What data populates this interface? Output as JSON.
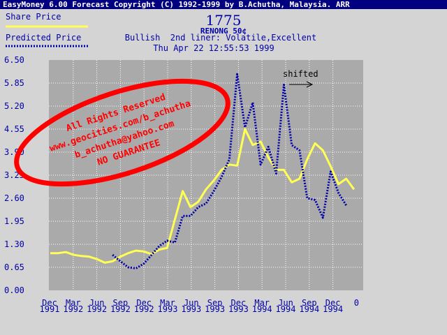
{
  "window": {
    "title": "EasyMoney 6.00 Forecast Copyright (C) 1992-1999 by B.Achutha, Malaysia. ARR"
  },
  "legend": {
    "share_price_label": "Share Price",
    "predicted_price_label": "Predicted Price",
    "share_price_color": "#ffff55",
    "predicted_price_color": "#0000a8"
  },
  "header": {
    "stock_code": "1775",
    "stock_name": "RENONG 50¢",
    "outlook": "Bullish  2nd liner: Volatile,Excellent",
    "timestamp": "Thu Apr 22 12:55:53 1999"
  },
  "annotation": {
    "shifted_label": "shifted",
    "arrow_icon": "right-arrow-icon"
  },
  "watermark": {
    "line1": "All Rights Reserved",
    "line2": "www.geocities.com/b_achutha",
    "line3": "b_achutha@yahoo.com",
    "line4": "NO GUARANTEE",
    "color": "#ff0000"
  },
  "chart_data": {
    "type": "line",
    "ylim": [
      0,
      6.5
    ],
    "y_ticks": [
      "6.50",
      "5.85",
      "5.20",
      "4.55",
      "3.90",
      "3.25",
      "2.60",
      "1.95",
      "1.30",
      "0.65",
      "0.00"
    ],
    "x_ticks": [
      {
        "month": "Dec",
        "year": "1991"
      },
      {
        "month": "Mar",
        "year": "1992"
      },
      {
        "month": "Jun",
        "year": "1992"
      },
      {
        "month": "Sep",
        "year": "1992"
      },
      {
        "month": "Dec",
        "year": "1992"
      },
      {
        "month": "Mar",
        "year": "1993"
      },
      {
        "month": "Jun",
        "year": "1993"
      },
      {
        "month": "Sep",
        "year": "1993"
      },
      {
        "month": "Dec",
        "year": "1993"
      },
      {
        "month": "Mar",
        "year": "1994"
      },
      {
        "month": "Jun",
        "year": "1994"
      },
      {
        "month": "Sep",
        "year": "1994"
      },
      {
        "month": "Dec",
        "year": "1994"
      },
      {
        "month": "0",
        "year": ""
      }
    ],
    "grid": true,
    "background_color": "#aaaaaa",
    "grid_color": "#ffffff",
    "axis_label_color": "#0000a8",
    "series": [
      {
        "name": "Share Price",
        "color": "#ffff55",
        "style": "solid",
        "x": [
          0,
          1,
          2,
          3,
          4,
          5,
          6,
          7,
          8,
          9,
          10,
          11,
          12,
          13,
          14,
          15,
          16,
          17,
          18,
          19,
          20,
          21,
          22,
          23,
          24,
          25,
          26,
          27,
          28,
          29,
          30,
          31,
          32,
          33,
          34,
          35,
          36,
          37,
          38,
          39
        ],
        "values": [
          1.05,
          1.05,
          1.08,
          1.0,
          0.97,
          0.95,
          0.88,
          0.78,
          0.82,
          0.95,
          1.05,
          1.12,
          1.1,
          1.02,
          1.15,
          1.2,
          2.0,
          2.8,
          2.35,
          2.5,
          2.85,
          3.1,
          3.4,
          3.55,
          3.52,
          4.55,
          4.1,
          4.2,
          3.75,
          3.4,
          3.4,
          3.05,
          3.15,
          3.7,
          4.15,
          3.95,
          3.5,
          3.0,
          3.15,
          2.85
        ]
      },
      {
        "name": "Predicted Price",
        "color": "#0000a8",
        "style": "dotted",
        "x": [
          8,
          9,
          10,
          11,
          12,
          13,
          14,
          15,
          16,
          17,
          18,
          19,
          20,
          21,
          22,
          23,
          24,
          25,
          26,
          27,
          28,
          29,
          30,
          31,
          32,
          33,
          34,
          35,
          36,
          37,
          38,
          39
        ],
        "values": [
          1.0,
          0.82,
          0.65,
          0.62,
          0.75,
          1.0,
          1.25,
          1.4,
          1.35,
          2.1,
          2.1,
          2.35,
          2.45,
          2.8,
          3.2,
          3.7,
          6.1,
          4.6,
          5.3,
          3.55,
          4.05,
          3.3,
          5.8,
          4.1,
          3.95,
          2.6,
          2.55,
          2.05,
          3.35,
          2.75,
          2.4,
          null
        ]
      }
    ]
  }
}
